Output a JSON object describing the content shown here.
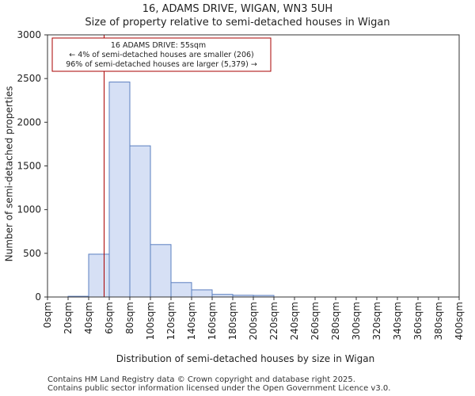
{
  "chart_data": {
    "type": "bar",
    "title": "16, ADAMS DRIVE, WIGAN, WN3 5UH",
    "subtitle": "Size of property relative to semi-detached houses in Wigan",
    "xlabel": "Distribution of semi-detached houses by size in Wigan",
    "ylabel": "Number of semi-detached properties",
    "x_tick_labels": [
      "0sqm",
      "20sqm",
      "40sqm",
      "60sqm",
      "80sqm",
      "100sqm",
      "120sqm",
      "140sqm",
      "160sqm",
      "180sqm",
      "200sqm",
      "220sqm",
      "240sqm",
      "260sqm",
      "280sqm",
      "300sqm",
      "320sqm",
      "340sqm",
      "360sqm",
      "380sqm",
      "400sqm"
    ],
    "bin_edges": [
      0,
      20,
      40,
      60,
      80,
      100,
      120,
      140,
      160,
      180,
      200,
      220,
      240,
      260,
      280,
      300,
      320,
      340,
      360,
      380,
      400
    ],
    "values": [
      0,
      8,
      490,
      2460,
      1730,
      600,
      165,
      82,
      30,
      20,
      18,
      0,
      0,
      0,
      0,
      0,
      0,
      0,
      0,
      0
    ],
    "y_ticks": [
      0,
      500,
      1000,
      1500,
      2000,
      2500,
      3000
    ],
    "ylim": [
      0,
      3000
    ],
    "xlim": [
      0,
      400
    ],
    "marker": {
      "x": 55,
      "color": "#aa0000"
    },
    "annotation": {
      "line1": "16 ADAMS DRIVE: 55sqm",
      "line2": "← 4% of semi-detached houses are smaller (206)",
      "line3": "96% of semi-detached houses are larger (5,379) →"
    },
    "bar_fill": "#d6e0f5",
    "bar_stroke": "#5b7fc0",
    "grid": false,
    "legend": "none"
  },
  "footer": {
    "line1": "Contains HM Land Registry data © Crown copyright and database right 2025.",
    "line2": "Contains public sector information licensed under the Open Government Licence v3.0."
  }
}
